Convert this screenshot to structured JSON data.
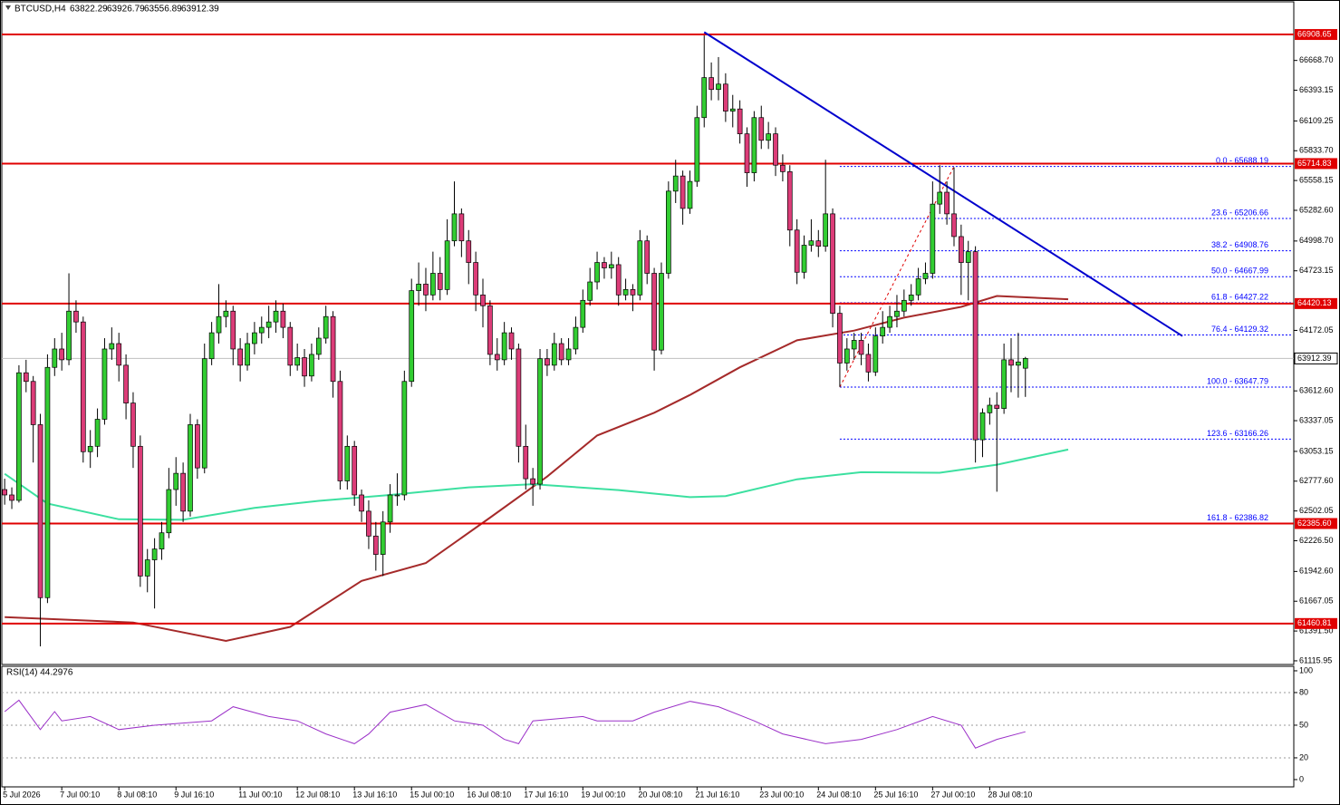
{
  "chart_data": {
    "type": "candlestick",
    "symbol": "BTCUSD,H4",
    "xlim": [
      -0.4,
      180.6
    ],
    "ylim": [
      61082,
      67211
    ],
    "ohlc": [
      [
        62700,
        62800,
        62560,
        62650
      ],
      [
        62650,
        62720,
        62520,
        62600
      ],
      [
        62600,
        63850,
        62580,
        63780
      ],
      [
        63780,
        63900,
        63600,
        63700
      ],
      [
        63700,
        63750,
        62950,
        63300
      ],
      [
        63300,
        63400,
        61250,
        61700
      ],
      [
        61700,
        63950,
        61650,
        63830
      ],
      [
        63830,
        64100,
        63750,
        64000
      ],
      [
        64000,
        64150,
        63800,
        63900
      ],
      [
        63900,
        64700,
        63850,
        64350
      ],
      [
        64350,
        64450,
        64150,
        64250
      ],
      [
        64250,
        64300,
        62950,
        63050
      ],
      [
        63050,
        63250,
        62900,
        63100
      ],
      [
        63100,
        63450,
        63000,
        63350
      ],
      [
        63350,
        64100,
        63300,
        64000
      ],
      [
        64000,
        64200,
        63900,
        64050
      ],
      [
        64050,
        64150,
        63700,
        63850
      ],
      [
        63850,
        63950,
        63350,
        63500
      ],
      [
        63500,
        63600,
        62900,
        63100
      ],
      [
        63100,
        63200,
        61800,
        61900
      ],
      [
        61900,
        62150,
        61750,
        62050
      ],
      [
        62050,
        62250,
        61600,
        62150
      ],
      [
        62150,
        62400,
        62050,
        62300
      ],
      [
        62300,
        62900,
        62250,
        62700
      ],
      [
        62700,
        63000,
        62550,
        62850
      ],
      [
        62850,
        62950,
        62400,
        62500
      ],
      [
        62500,
        63400,
        62450,
        63300
      ],
      [
        63300,
        63350,
        62800,
        62900
      ],
      [
        62900,
        64050,
        62850,
        63910
      ],
      [
        63910,
        64250,
        63850,
        64150
      ],
      [
        64150,
        64600,
        64050,
        64300
      ],
      [
        64300,
        64450,
        64200,
        64350
      ],
      [
        64350,
        64400,
        63850,
        64000
      ],
      [
        64000,
        64100,
        63700,
        63850
      ],
      [
        63850,
        64150,
        63800,
        64050
      ],
      [
        64050,
        64250,
        63950,
        64150
      ],
      [
        64150,
        64300,
        64050,
        64200
      ],
      [
        64200,
        64400,
        64100,
        64250
      ],
      [
        64250,
        64450,
        64150,
        64350
      ],
      [
        64350,
        64420,
        64100,
        64200
      ],
      [
        64200,
        64250,
        63750,
        63850
      ],
      [
        63850,
        64050,
        63800,
        63920
      ],
      [
        63920,
        64000,
        63650,
        63750
      ],
      [
        63750,
        64050,
        63700,
        63950
      ],
      [
        63950,
        64200,
        63900,
        64100
      ],
      [
        64100,
        64400,
        64050,
        64300
      ],
      [
        64300,
        64350,
        63550,
        63700
      ],
      [
        63700,
        63800,
        62700,
        62780
      ],
      [
        62780,
        63200,
        62700,
        63100
      ],
      [
        63100,
        63150,
        62550,
        62650
      ],
      [
        62650,
        62700,
        62400,
        62500
      ],
      [
        62500,
        62600,
        62150,
        62270
      ],
      [
        62270,
        62400,
        61950,
        62100
      ],
      [
        62100,
        62500,
        61900,
        62400
      ],
      [
        62400,
        62750,
        62300,
        62650
      ],
      [
        62650,
        62850,
        62550,
        62650
      ],
      [
        62650,
        63800,
        62600,
        63700
      ],
      [
        63700,
        64650,
        63650,
        64540
      ],
      [
        64540,
        64800,
        64400,
        64600
      ],
      [
        64600,
        64750,
        64350,
        64500
      ],
      [
        64500,
        64900,
        64450,
        64700
      ],
      [
        64700,
        64850,
        64450,
        64550
      ],
      [
        64550,
        65200,
        64500,
        65000
      ],
      [
        65000,
        65550,
        64950,
        65250
      ],
      [
        65250,
        65300,
        64850,
        65000
      ],
      [
        65000,
        65100,
        64600,
        64800
      ],
      [
        64800,
        64900,
        64350,
        64500
      ],
      [
        64500,
        64650,
        64200,
        64400
      ],
      [
        64400,
        64450,
        63850,
        63950
      ],
      [
        63950,
        64100,
        63800,
        63900
      ],
      [
        63900,
        64250,
        63850,
        64150
      ],
      [
        64150,
        64200,
        63900,
        64000
      ],
      [
        64000,
        64050,
        62950,
        63100
      ],
      [
        63100,
        63300,
        62700,
        62800
      ],
      [
        62800,
        62900,
        62550,
        62750
      ],
      [
        62750,
        64000,
        62700,
        63910
      ],
      [
        63910,
        64000,
        63750,
        63850
      ],
      [
        63850,
        64150,
        63800,
        64050
      ],
      [
        64050,
        64100,
        63850,
        63900
      ],
      [
        63900,
        64100,
        63850,
        64000
      ],
      [
        64000,
        64300,
        63950,
        64200
      ],
      [
        64200,
        64550,
        64150,
        64450
      ],
      [
        64450,
        64750,
        64400,
        64620
      ],
      [
        64620,
        64900,
        64550,
        64800
      ],
      [
        64800,
        64850,
        64650,
        64750
      ],
      [
        64750,
        64900,
        64650,
        64780
      ],
      [
        64780,
        64850,
        64400,
        64500
      ],
      [
        64500,
        64650,
        64450,
        64550
      ],
      [
        64550,
        64600,
        64350,
        64500
      ],
      [
        64500,
        65100,
        64450,
        65000
      ],
      [
        65000,
        65050,
        64600,
        64700
      ],
      [
        64700,
        64750,
        63800,
        63990
      ],
      [
        63990,
        64800,
        63950,
        64700
      ],
      [
        64700,
        65550,
        64650,
        65460
      ],
      [
        65460,
        65750,
        65350,
        65600
      ],
      [
        65600,
        65650,
        65150,
        65300
      ],
      [
        65300,
        65650,
        65250,
        65550
      ],
      [
        65550,
        66250,
        65500,
        66140
      ],
      [
        66140,
        66900,
        66050,
        66510
      ],
      [
        66510,
        66650,
        66300,
        66400
      ],
      [
        66400,
        66700,
        66300,
        66450
      ],
      [
        66450,
        66550,
        66100,
        66200
      ],
      [
        66200,
        66350,
        66050,
        66220
      ],
      [
        66220,
        66300,
        65900,
        65990
      ],
      [
        65990,
        66050,
        65500,
        65630
      ],
      [
        65630,
        66200,
        65550,
        66140
      ],
      [
        66140,
        66250,
        65850,
        65930
      ],
      [
        65930,
        66100,
        65850,
        65990
      ],
      [
        65990,
        66050,
        65600,
        65700
      ],
      [
        65700,
        65800,
        65550,
        65640
      ],
      [
        65640,
        65700,
        64950,
        65100
      ],
      [
        65100,
        65200,
        64600,
        64710
      ],
      [
        64710,
        65050,
        64650,
        64960
      ],
      [
        64960,
        65200,
        64900,
        65000
      ],
      [
        65000,
        65100,
        64850,
        64950
      ],
      [
        64950,
        65750,
        64900,
        65250
      ],
      [
        65250,
        65300,
        64200,
        64330
      ],
      [
        64330,
        64400,
        63650,
        63870
      ],
      [
        63870,
        64100,
        63800,
        64000
      ],
      [
        64000,
        64150,
        63900,
        64080
      ],
      [
        64080,
        64150,
        63850,
        63950
      ],
      [
        63950,
        64050,
        63700,
        63787
      ],
      [
        63787,
        64200,
        63750,
        64120
      ],
      [
        64120,
        64350,
        64050,
        64200
      ],
      [
        64200,
        64400,
        64150,
        64300
      ],
      [
        64300,
        64500,
        64200,
        64350
      ],
      [
        64350,
        64550,
        64300,
        64450
      ],
      [
        64450,
        64600,
        64400,
        64500
      ],
      [
        64500,
        64750,
        64450,
        64650
      ],
      [
        64650,
        64800,
        64600,
        64700
      ],
      [
        64700,
        65550,
        64650,
        65340
      ],
      [
        65340,
        65700,
        65250,
        65450
      ],
      [
        65450,
        65550,
        65150,
        65250
      ],
      [
        65250,
        65680,
        64950,
        65040
      ],
      [
        65040,
        65150,
        64500,
        64800
      ],
      [
        64800,
        65000,
        64450,
        64900
      ],
      [
        64900,
        64950,
        62950,
        63160
      ],
      [
        63160,
        63450,
        63000,
        63410
      ],
      [
        63410,
        63550,
        63300,
        63480
      ],
      [
        63480,
        63600,
        62680,
        63450
      ],
      [
        63450,
        64050,
        63400,
        63900
      ],
      [
        63900,
        64100,
        63600,
        63850
      ],
      [
        63850,
        64150,
        63550,
        63880
      ],
      [
        63822.29,
        63926.79,
        63556.89,
        63912.39
      ]
    ],
    "bull_color": "#32cd32",
    "bear_color": "#dc3c78",
    "ma": [
      {
        "color": "#a52a2a",
        "x": [
          0,
          18,
          31,
          40,
          50,
          59,
          68,
          76,
          83,
          91,
          96,
          103,
          111,
          119,
          126,
          134,
          139,
          149
        ],
        "values": [
          61520,
          61470,
          61300,
          61430,
          61855,
          62020,
          62440,
          62820,
          63200,
          63410,
          63575,
          63830,
          64080,
          64170,
          64290,
          64390,
          64490,
          64460
        ]
      },
      {
        "color": "#3ce0a0",
        "x": [
          0,
          6,
          16,
          25,
          35,
          44,
          54,
          65,
          74,
          86,
          96,
          101,
          111,
          120,
          131,
          139,
          149
        ],
        "values": [
          62845,
          62570,
          62425,
          62420,
          62530,
          62595,
          62650,
          62720,
          62750,
          62695,
          62630,
          62640,
          62795,
          62860,
          62855,
          62930,
          63070
        ]
      }
    ],
    "levels": [
      66908.65,
      65714.83,
      64420.13,
      {
        "value": 62385.6,
        "label": "62385.60"
      },
      61460.81
    ],
    "level_color": "#e00000",
    "trendline": {
      "color": "#0000cd",
      "x": [
        98,
        165
      ],
      "values": [
        66930,
        64120
      ]
    },
    "fib": {
      "x": [
        117,
        133
      ],
      "color": "#0000ff",
      "levels": [
        {
          "value": 65688.19,
          "label": "0.0 - 65688.19"
        },
        {
          "value": 65206.66,
          "label": "23.6 - 65206.66"
        },
        {
          "value": 64908.76,
          "label": "38.2 - 64908.76"
        },
        {
          "value": 64667.99,
          "label": "50.0 - 64667.99"
        },
        {
          "value": 64427.22,
          "label": "61.8 - 64427.22"
        },
        {
          "value": 64129.32,
          "label": "76.4 - 64129.32"
        },
        {
          "value": 63647.79,
          "label": "100.0 - 63647.79"
        },
        {
          "value": 63166.26,
          "label": "123.6 - 63166.26"
        },
        {
          "value": 62386.82,
          "label": "161.8 - 62386.82"
        }
      ]
    },
    "yticks": [
      {
        "value": 66668.7,
        "label": "66668.70"
      },
      66393.15,
      66109.25,
      {
        "value": 65833.7,
        "label": "65833.70"
      },
      65558.15,
      {
        "value": 65282.6,
        "label": "65282.60"
      },
      {
        "value": 64998.7,
        "label": "64998.70"
      },
      64723.15,
      64172.05,
      {
        "value": 63612.6,
        "label": "63612.60"
      },
      63337.05,
      63053.15,
      {
        "value": 62777.6,
        "label": "62777.60"
      },
      62502.05,
      {
        "value": 62226.5,
        "label": "62226.50"
      },
      {
        "value": 61942.6,
        "label": "61942.60"
      },
      61667.05,
      {
        "value": 61391.5,
        "label": "61391.50"
      },
      61115.95
    ],
    "xticks": [
      {
        "value": 0,
        "label": "5 Jul 2026"
      },
      {
        "value": 8,
        "label": "7 Jul 00:10"
      },
      {
        "value": 16,
        "label": "8 Jul 08:10"
      },
      {
        "value": 24,
        "label": "9 Jul 16:10"
      },
      {
        "value": 33,
        "label": "11 Jul 00:10"
      },
      {
        "value": 41,
        "label": "12 Jul 08:10"
      },
      {
        "value": 49,
        "label": "13 Jul 16:10"
      },
      {
        "value": 57,
        "label": "15 Jul 00:10"
      },
      {
        "value": 65,
        "label": "16 Jul 08:10"
      },
      {
        "value": 73,
        "label": "17 Jul 16:10"
      },
      {
        "value": 81,
        "label": "19 Jul 00:10"
      },
      {
        "value": 89,
        "label": "20 Jul 08:10"
      },
      {
        "value": 97,
        "label": "21 Jul 16:10"
      },
      {
        "value": 106,
        "label": "23 Jul 00:10"
      },
      {
        "value": 114,
        "label": "24 Jul 08:10"
      },
      {
        "value": 122,
        "label": "25 Jul 16:10"
      },
      {
        "value": 130,
        "label": "27 Jul 00:10"
      },
      {
        "value": 138,
        "label": "28 Jul 08:10"
      }
    ],
    "rsi": {
      "title": "RSI(14) 44.2976",
      "color": "#9b30c8",
      "ylim": [
        -6.7,
        103.3
      ],
      "yticks": [
        100,
        80,
        50,
        20,
        0
      ],
      "x": [
        0,
        2,
        5,
        7,
        8,
        12,
        16,
        21,
        29,
        32,
        37,
        41,
        45,
        49,
        51,
        54,
        59,
        63,
        67,
        70,
        72,
        74,
        81,
        83,
        88,
        91,
        96,
        100,
        105,
        109,
        115,
        120,
        125,
        130,
        134,
        136,
        139,
        143
      ],
      "values": [
        62.5,
        73,
        46,
        62.5,
        54,
        58,
        46,
        50,
        54,
        67,
        58,
        54,
        42,
        33,
        42,
        62,
        69,
        54,
        50,
        37,
        33,
        54,
        58,
        54,
        54,
        62,
        72,
        67,
        54,
        42,
        33,
        37,
        46,
        58,
        50,
        29,
        37,
        44
      ]
    }
  }
}
